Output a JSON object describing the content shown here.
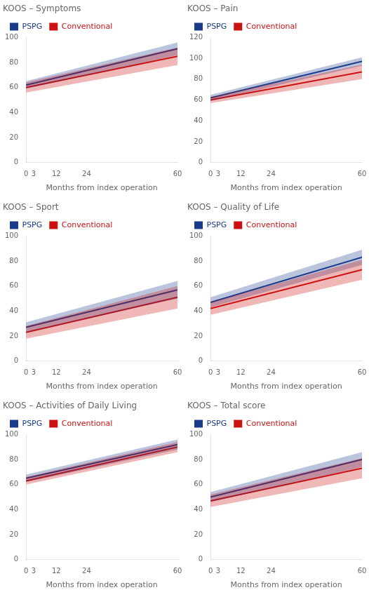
{
  "chart_data": [
    {
      "type": "line",
      "title": "KOOS – Symptoms",
      "x": [
        0,
        60
      ],
      "xlabel": "Months from index operation",
      "xlim": [
        0,
        60
      ],
      "xticks": [
        0,
        3,
        12,
        24,
        60
      ],
      "ylim": [
        0,
        100
      ],
      "yticks": [
        0,
        20,
        40,
        60,
        80,
        100
      ],
      "grid": false,
      "legend": "upper left",
      "series": [
        {
          "name": "PSPG",
          "color": "#1a3a8a",
          "values": [
            62,
            91
          ],
          "ci_low": [
            59,
            86
          ],
          "ci_high": [
            65,
            96
          ]
        },
        {
          "name": "Conventional",
          "color": "#cc1111",
          "values": [
            60,
            85
          ],
          "ci_low": [
            56,
            78
          ],
          "ci_high": [
            64,
            92
          ]
        }
      ]
    },
    {
      "type": "line",
      "title": "KOOS – Pain",
      "x": [
        0,
        60
      ],
      "xlabel": "Months from index operation",
      "xlim": [
        0,
        60
      ],
      "xticks": [
        0,
        3,
        12,
        24,
        60
      ],
      "ylim": [
        0,
        120
      ],
      "yticks": [
        0,
        20,
        40,
        60,
        80,
        100,
        120
      ],
      "grid": false,
      "legend": "upper left",
      "series": [
        {
          "name": "PSPG",
          "color": "#1a3a8a",
          "values": [
            62,
            97
          ],
          "ci_low": [
            59,
            93
          ],
          "ci_high": [
            65,
            101
          ]
        },
        {
          "name": "Conventional",
          "color": "#cc1111",
          "values": [
            60,
            87
          ],
          "ci_low": [
            57,
            80
          ],
          "ci_high": [
            63,
            94
          ]
        }
      ]
    },
    {
      "type": "line",
      "title": "KOOS – Sport",
      "x": [
        0,
        60
      ],
      "xlabel": "Months from index operation",
      "xlim": [
        0,
        60
      ],
      "xticks": [
        0,
        3,
        12,
        24,
        60
      ],
      "ylim": [
        0,
        100
      ],
      "yticks": [
        0,
        20,
        40,
        60,
        80,
        100
      ],
      "grid": false,
      "legend": "upper left",
      "series": [
        {
          "name": "PSPG",
          "color": "#1a3a8a",
          "values": [
            27,
            57
          ],
          "ci_low": [
            23,
            50
          ],
          "ci_high": [
            31,
            64
          ]
        },
        {
          "name": "Conventional",
          "color": "#cc1111",
          "values": [
            23,
            51
          ],
          "ci_low": [
            18,
            42
          ],
          "ci_high": [
            28,
            60
          ]
        }
      ]
    },
    {
      "type": "line",
      "title": "KOOS – Quality of Life",
      "x": [
        0,
        60
      ],
      "xlabel": "Months from index operation",
      "xlim": [
        0,
        60
      ],
      "xticks": [
        0,
        3,
        12,
        24,
        60
      ],
      "ylim": [
        0,
        100
      ],
      "yticks": [
        0,
        20,
        40,
        60,
        80,
        100
      ],
      "grid": false,
      "legend": "upper left",
      "series": [
        {
          "name": "PSPG",
          "color": "#1a3a8a",
          "values": [
            47,
            83
          ],
          "ci_low": [
            43,
            77
          ],
          "ci_high": [
            51,
            89
          ]
        },
        {
          "name": "Conventional",
          "color": "#cc1111",
          "values": [
            42,
            73
          ],
          "ci_low": [
            37,
            65
          ],
          "ci_high": [
            47,
            81
          ]
        }
      ]
    },
    {
      "type": "line",
      "title": "KOOS – Activities of Daily Living",
      "x": [
        0,
        60
      ],
      "xlabel": "Months from index operation",
      "xlim": [
        0,
        60
      ],
      "xticks": [
        0,
        3,
        12,
        24,
        60
      ],
      "ylim": [
        0,
        100
      ],
      "yticks": [
        0,
        20,
        40,
        60,
        80,
        100
      ],
      "grid": false,
      "legend": "upper left",
      "series": [
        {
          "name": "PSPG",
          "color": "#1a3a8a",
          "values": [
            65,
            92
          ],
          "ci_low": [
            62,
            88
          ],
          "ci_high": [
            68,
            96
          ]
        },
        {
          "name": "Conventional",
          "color": "#cc1111",
          "values": [
            63,
            90
          ],
          "ci_low": [
            60,
            86
          ],
          "ci_high": [
            66,
            94
          ]
        }
      ]
    },
    {
      "type": "line",
      "title": "KOOS – Total score",
      "x": [
        0,
        60
      ],
      "xlabel": "Months from index operation",
      "xlim": [
        0,
        60
      ],
      "xticks": [
        0,
        3,
        12,
        24,
        60
      ],
      "ylim": [
        0,
        100
      ],
      "yticks": [
        0,
        20,
        40,
        60,
        80,
        100
      ],
      "grid": false,
      "legend": "upper left",
      "series": [
        {
          "name": "PSPG",
          "color": "#1a3a8a",
          "values": [
            50,
            80
          ],
          "ci_low": [
            46,
            74
          ],
          "ci_high": [
            54,
            86
          ]
        },
        {
          "name": "Conventional",
          "color": "#cc1111",
          "values": [
            47,
            73
          ],
          "ci_low": [
            42,
            65
          ],
          "ci_high": [
            52,
            81
          ]
        }
      ]
    }
  ]
}
